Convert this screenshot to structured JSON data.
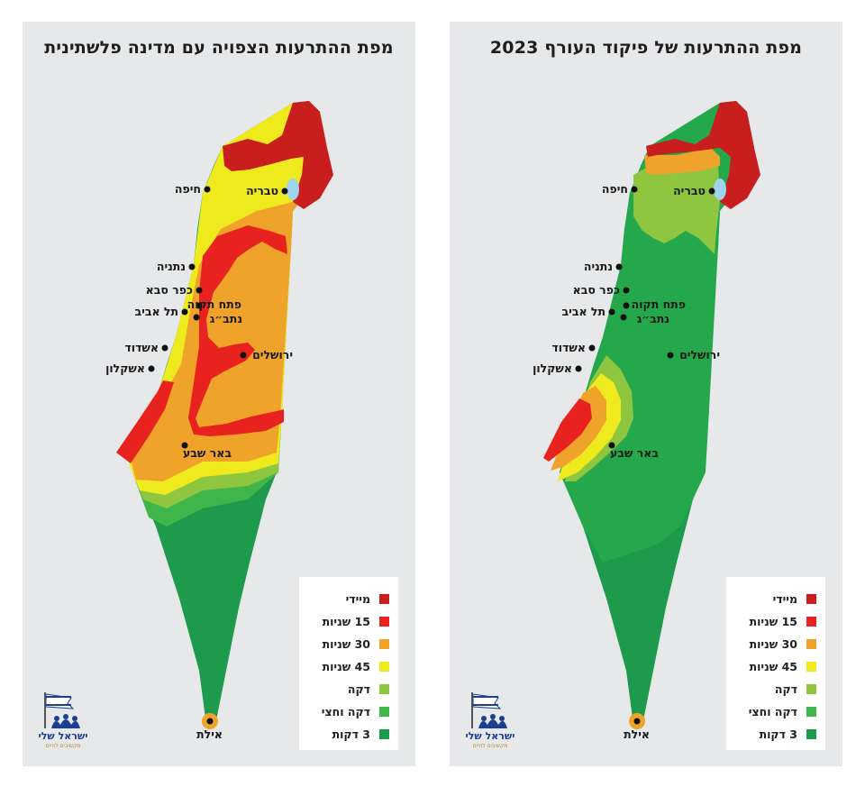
{
  "left_map": {
    "title": "מפת ההתרעות הצפויה עם מדינה פלשתינית",
    "cities": [
      {
        "name": "חיפה"
      },
      {
        "name": "טבריה"
      },
      {
        "name": "נתניה"
      },
      {
        "name": "כפר סבא"
      },
      {
        "name": "פתח תקוה"
      },
      {
        "name": "תל אביב"
      },
      {
        "name": "נתב״ג"
      },
      {
        "name": "ירושלים"
      },
      {
        "name": "אשדוד"
      },
      {
        "name": "אשקלון"
      },
      {
        "name": "באר שבע"
      },
      {
        "name": "אילת"
      }
    ]
  },
  "right_map": {
    "title": "מפת ההתרעות של פיקוד העורף 2023",
    "cities": [
      {
        "name": "חיפה"
      },
      {
        "name": "טבריה"
      },
      {
        "name": "נתניה"
      },
      {
        "name": "כפר סבא"
      },
      {
        "name": "פתח תקוה"
      },
      {
        "name": "תל אביב"
      },
      {
        "name": "נתב״ג"
      },
      {
        "name": "ירושלים"
      },
      {
        "name": "אשדוד"
      },
      {
        "name": "אשקלון"
      },
      {
        "name": "באר שבע"
      },
      {
        "name": "אילת"
      }
    ]
  },
  "legend": [
    {
      "label": "מיידי",
      "color": "#c81e1e"
    },
    {
      "label": "15 שניות",
      "color": "#e8231f"
    },
    {
      "label": "30 שניות",
      "color": "#f0a32a"
    },
    {
      "label": "45 שניות",
      "color": "#eeea1e"
    },
    {
      "label": "דקה",
      "color": "#8fc63f"
    },
    {
      "label": "דקה וחצי",
      "color": "#3fb54a"
    },
    {
      "label": "3 דקות",
      "color": "#1e9a4c"
    }
  ],
  "logo": {
    "name": "ישראל שלי",
    "tagline": "מקשיבים לחיים"
  },
  "colors": {
    "sea_of_galilee": "#9fd4ef",
    "panel_background": "#e6e8ea"
  }
}
